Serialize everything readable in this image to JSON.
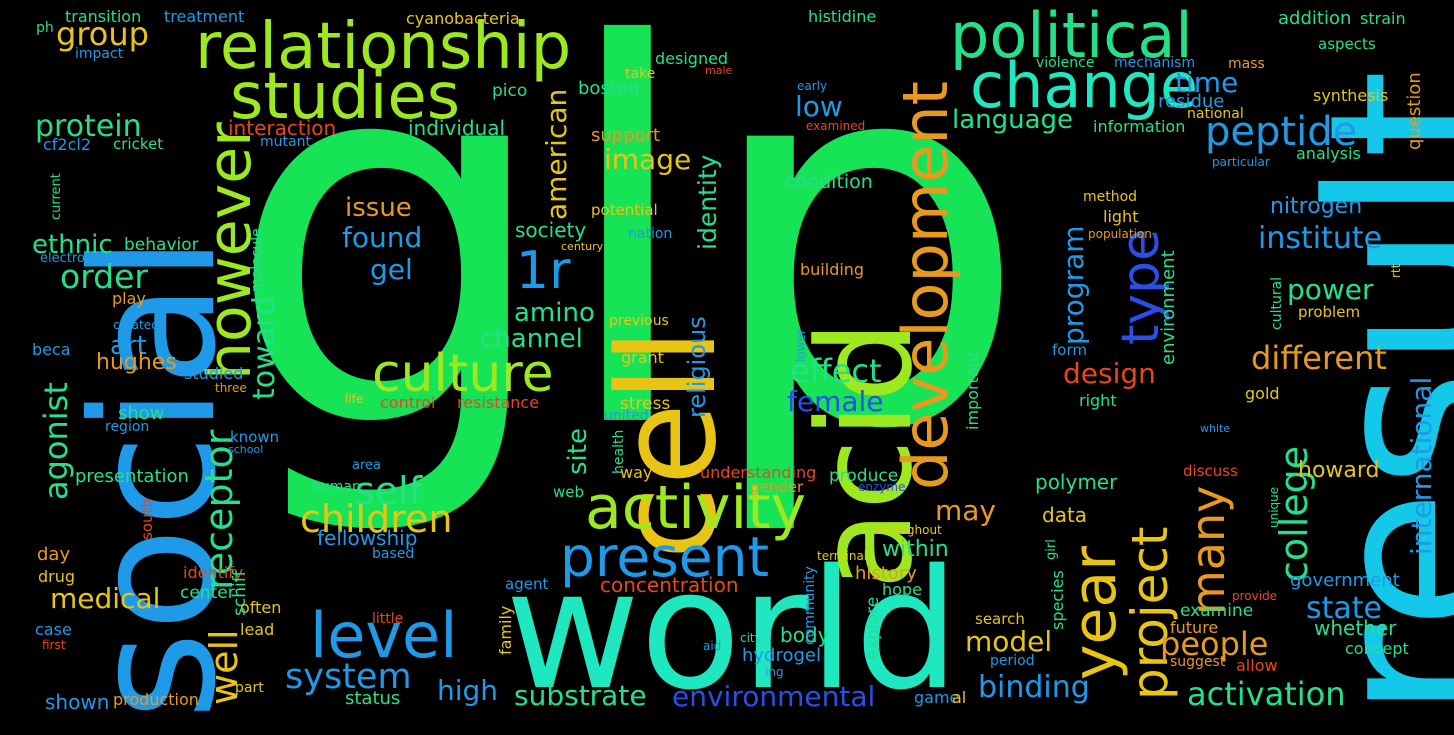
{
  "colors": {
    "background": "#000000",
    "green": "#17e356",
    "cyan": "#13c8e8",
    "teal": "#1fe8c0",
    "blue": "#1f9ae8",
    "royal": "#2a4fe6",
    "lime": "#9ee81f",
    "yellow": "#e8c515",
    "orange": "#e89a1f",
    "red": "#e8461f",
    "seafoam": "#25e08a"
  },
  "words": [
    "glp",
    "result",
    "social",
    "world",
    "cell",
    "acid",
    "relationship",
    "political",
    "studies",
    "change",
    "however",
    "development",
    "activity",
    "culture",
    "peptide",
    "level",
    "year",
    "present",
    "project",
    "many",
    "1r",
    "type",
    "children",
    "self",
    "receptor",
    "protein",
    "group",
    "order",
    "agonist",
    "ethnic",
    "medical",
    "well",
    "toward",
    "art",
    "hughes",
    "system",
    "high",
    "substrate",
    "environmental",
    "binding",
    "activation",
    "model",
    "people",
    "state",
    "college",
    "international",
    "different",
    "institute",
    "power",
    "nitrogen",
    "program",
    "design",
    "environment",
    "language",
    "time",
    "low",
    "effect",
    "female",
    "condition",
    "image",
    "american",
    "identity",
    "religious",
    "site",
    "society",
    "amino",
    "channel",
    "issue",
    "found",
    "gel",
    "fellowship",
    "within",
    "may",
    "concentration",
    "history",
    "body",
    "hydrogel",
    "polymer",
    "data",
    "howard",
    "whether",
    "concept",
    "allow",
    "government",
    "examine",
    "future",
    "suggest",
    "discuss",
    "gold",
    "question",
    "analysis",
    "synthesis",
    "addition",
    "strain",
    "mass",
    "aspects",
    "national",
    "information",
    "residue",
    "histidine",
    "mechanism",
    "violence",
    "cyanobacteria",
    "boston",
    "pico",
    "designed",
    "take",
    "male",
    "support",
    "interaction",
    "individual",
    "potential",
    "nation",
    "century",
    "treatment",
    "transition",
    "impact",
    "ph",
    "cf2cl2",
    "cricket",
    "mutant",
    "play",
    "current",
    "electron",
    "behavior",
    "molecule",
    "created",
    "beca",
    "studied",
    "three",
    "life",
    "control",
    "resistance",
    "stress",
    "united",
    "show",
    "region",
    "known",
    "school",
    "presentation",
    "health",
    "way",
    "web",
    "understanding",
    "produce",
    "enzyme",
    "gender",
    "human",
    "area",
    "based",
    "south",
    "day",
    "drug",
    "identify",
    "center",
    "often",
    "lead",
    "schiff",
    "case",
    "first",
    "little",
    "part",
    "shown",
    "production",
    "status",
    "game",
    "al",
    "ing",
    "aid",
    "city",
    "community",
    "explore",
    "terminal",
    "hope",
    "throughout",
    "lower",
    "important",
    "building",
    "previous",
    "grant",
    "light",
    "population",
    "method",
    "form",
    "right",
    "particular",
    "rtt",
    "unique",
    "white",
    "cultural",
    "problem",
    "girl",
    "species",
    "search",
    "period",
    "family",
    "provide",
    "agent",
    "examined",
    "early"
  ]
}
